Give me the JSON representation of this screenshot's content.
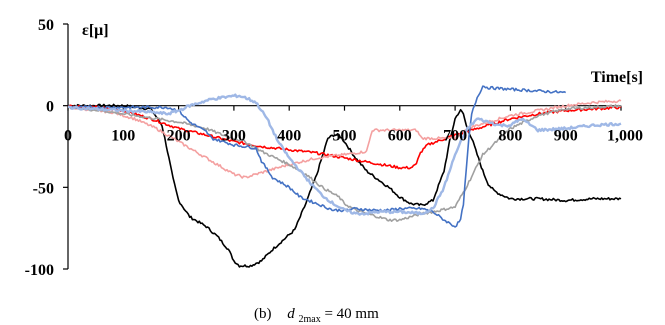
{
  "chart_data": {
    "type": "line",
    "ylabel": "ε[μ]",
    "xlabel": "Time[s]",
    "caption": {
      "prefix": "(b)",
      "variable": "d",
      "subscript": "2max",
      "suffix": " = 40 mm"
    },
    "xlim": [
      0,
      1000
    ],
    "ylim": [
      -100,
      50
    ],
    "x_ticks": [
      "0",
      "100",
      "200",
      "300",
      "400",
      "500",
      "600",
      "700",
      "800",
      "900",
      "1,000"
    ],
    "x_tick_values": [
      0,
      100,
      200,
      300,
      400,
      500,
      600,
      700,
      800,
      900,
      1000
    ],
    "y_ticks": [
      "50",
      "0",
      "-50",
      "-100"
    ],
    "y_tick_values": [
      50,
      0,
      -50,
      -100
    ],
    "grid": false,
    "legend": "none",
    "series": [
      {
        "color": "#000000",
        "x": [
          0,
          100,
          150,
          170,
          180,
          190,
          200,
          220,
          250,
          270,
          290,
          300,
          310,
          330,
          350,
          370,
          390,
          410,
          430,
          450,
          470,
          480,
          490,
          500,
          520,
          540,
          560,
          580,
          600,
          620,
          640,
          660,
          680,
          690,
          700,
          705,
          710,
          715,
          720,
          730,
          740,
          750,
          760,
          770,
          780,
          800,
          850,
          900,
          950,
          1000
        ],
        "y": [
          0,
          0,
          -2,
          -12,
          -28,
          -45,
          -58,
          -68,
          -74,
          -80,
          -88,
          -95,
          -98,
          -98,
          -95,
          -88,
          -82,
          -76,
          -60,
          -42,
          -20,
          -18,
          -18,
          -22,
          -32,
          -40,
          -45,
          -50,
          -56,
          -60,
          -61,
          -58,
          -40,
          -22,
          -8,
          -5,
          -3,
          -5,
          -12,
          -20,
          -30,
          -40,
          -48,
          -52,
          -54,
          -57,
          -57,
          -58,
          -57,
          -57
        ]
      },
      {
        "color": "#ff0000",
        "x": [
          0,
          50,
          100,
          150,
          200,
          250,
          300,
          350,
          400,
          450,
          500,
          550,
          600,
          620,
          630,
          635,
          650,
          700,
          750,
          800,
          850,
          900,
          950,
          1000
        ],
        "y": [
          0,
          -1,
          -3,
          -8,
          -14,
          -18,
          -22,
          -25,
          -27,
          -29,
          -32,
          -35,
          -38,
          -38,
          -36,
          -30,
          -24,
          -18,
          -13,
          -8,
          -5,
          -3,
          -2,
          -1
        ]
      },
      {
        "color": "#f4a0a0",
        "x": [
          0,
          80,
          120,
          160,
          200,
          220,
          240,
          260,
          280,
          300,
          320,
          340,
          360,
          400,
          450,
          500,
          540,
          550,
          600,
          630,
          640,
          700,
          720,
          760,
          800,
          850,
          900,
          950,
          1000
        ],
        "y": [
          -1,
          -4,
          -8,
          -14,
          -22,
          -26,
          -30,
          -34,
          -38,
          -42,
          -44,
          -42,
          -40,
          -36,
          -32,
          -30,
          -28,
          -15,
          -15,
          -15,
          -20,
          -20,
          -14,
          -10,
          -6,
          -3,
          0,
          2,
          3
        ]
      },
      {
        "color": "#a0a0a0",
        "x": [
          0,
          60,
          100,
          200,
          250,
          280,
          300,
          320,
          350,
          400,
          430,
          460,
          490,
          500,
          520,
          540,
          560,
          580,
          600,
          620,
          640,
          660,
          700,
          720,
          750,
          800,
          850,
          900,
          950,
          1000
        ],
        "y": [
          -1,
          -3,
          -5,
          -10,
          -14,
          -18,
          -20,
          -22,
          -28,
          -36,
          -42,
          -50,
          -56,
          -60,
          -64,
          -66,
          -68,
          -70,
          -70,
          -68,
          -66,
          -65,
          -62,
          -50,
          -30,
          -14,
          -6,
          -2,
          -1,
          0
        ]
      },
      {
        "color": "#4472c4",
        "x": [
          0,
          100,
          180,
          200,
          220,
          240,
          250,
          260,
          300,
          340,
          350,
          370,
          400,
          420,
          450,
          480,
          500,
          520,
          550,
          580,
          600,
          620,
          640,
          660,
          680,
          700,
          710,
          715,
          720,
          725,
          730,
          740,
          750,
          760,
          800,
          850,
          900
        ],
        "y": [
          -1,
          -1,
          -1,
          -3,
          -10,
          -14,
          -16,
          -20,
          -24,
          -26,
          -34,
          -44,
          -50,
          -56,
          -60,
          -64,
          -64,
          -63,
          -64,
          -64,
          -63,
          -63,
          -63,
          -65,
          -70,
          -74,
          -70,
          -60,
          -40,
          -20,
          -5,
          5,
          12,
          11,
          10,
          9,
          8
        ]
      },
      {
        "color": "#9fb8e6",
        "x": [
          0,
          50,
          100,
          150,
          180,
          200,
          220,
          240,
          260,
          280,
          300,
          310,
          320,
          340,
          360,
          380,
          400,
          420,
          440,
          460,
          480,
          500,
          520,
          540,
          560,
          600,
          640,
          660,
          680,
          700,
          720,
          740,
          760,
          780,
          800,
          820,
          850,
          900,
          950,
          1000
        ],
        "y": [
          -1,
          -2,
          -3,
          -4,
          -5,
          -3,
          0,
          2,
          4,
          5,
          6,
          6,
          5,
          2,
          -8,
          -22,
          -32,
          -40,
          -48,
          -55,
          -60,
          -64,
          -66,
          -66,
          -65,
          -65,
          -66,
          -63,
          -50,
          -30,
          -15,
          -8,
          -10,
          -12,
          -12,
          -8,
          -15,
          -14,
          -12,
          -11
        ]
      }
    ]
  }
}
